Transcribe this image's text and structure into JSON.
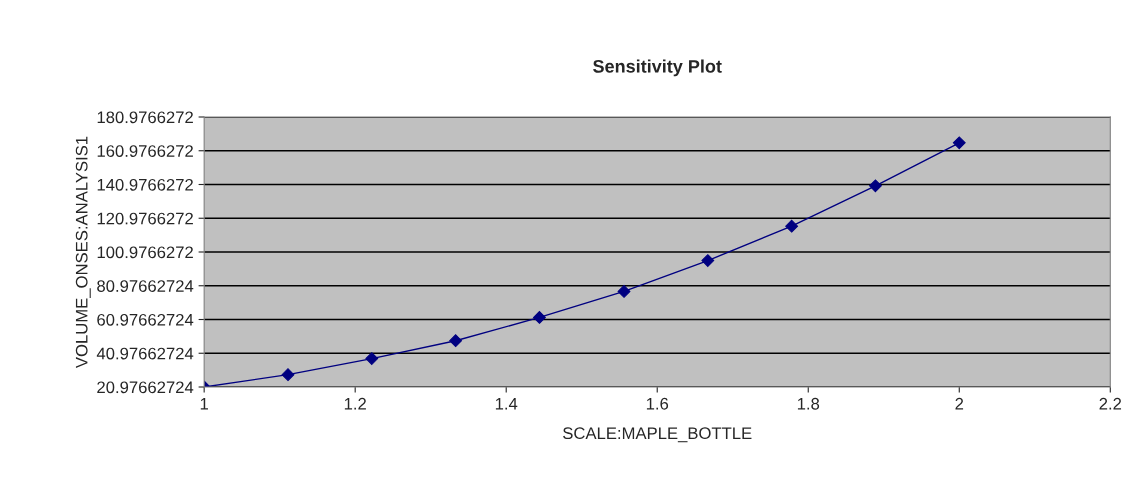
{
  "chart_data": {
    "type": "line",
    "title": "Sensitivity Plot",
    "xlabel": "SCALE:MAPLE_BOTTLE",
    "ylabel": "VOLUME_ONSES:ANALYSIS1",
    "x": [
      1,
      1.111,
      1.222,
      1.333,
      1.444,
      1.556,
      1.667,
      1.778,
      1.889,
      2
    ],
    "series": [
      {
        "color": "#000080",
        "values": [
          21,
          28.3,
          37.8,
          48.4,
          62.2,
          77.6,
          95.9,
          116.3,
          140.2,
          165.7
        ]
      }
    ],
    "xlim": [
      1,
      2.2
    ],
    "xticks": [
      1,
      1.2,
      1.4,
      1.6,
      1.8,
      2,
      2.2
    ],
    "ylim": [
      20.97662724,
      180.9766272
    ],
    "yticks": [
      20.97662724,
      40.97662724,
      60.97662724,
      80.97662724,
      100.9766272,
      120.9766272,
      140.9766272,
      160.9766272,
      180.9766272
    ],
    "grid": "y",
    "marker": "diamond",
    "line_style": "solid"
  }
}
